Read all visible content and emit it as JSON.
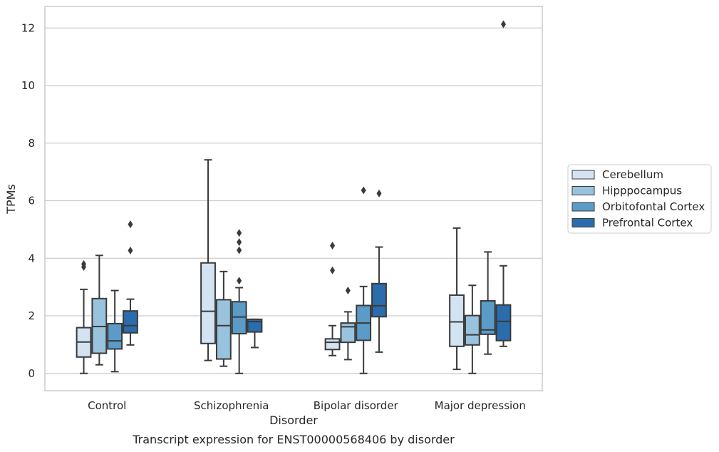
{
  "chart_data": {
    "type": "box",
    "title": "",
    "caption": "Transcript expression for ENST00000568406 by disorder",
    "xlabel": "Disorder",
    "ylabel": "TPMs",
    "ylim": [
      -0.6,
      12.75
    ],
    "yticks": [
      0,
      2,
      4,
      6,
      8,
      10,
      12
    ],
    "grid": "horizontal",
    "legend_position": "right",
    "categories": [
      "Control",
      "Schizophrenia",
      "Bipolar disorder",
      "Major depression"
    ],
    "series": [
      {
        "name": "Cerebellum",
        "color": "#d3e3f2",
        "boxes": [
          {
            "whislo": 0.0,
            "q1": 0.57,
            "med": 1.09,
            "q3": 1.59,
            "whishi": 2.92,
            "fliers": [
              3.7,
              3.8
            ]
          },
          {
            "whislo": 0.45,
            "q1": 1.04,
            "med": 2.16,
            "q3": 3.84,
            "whishi": 7.42,
            "fliers": []
          },
          {
            "whislo": 0.62,
            "q1": 0.83,
            "med": 1.08,
            "q3": 1.2,
            "whishi": 1.66,
            "fliers": [
              3.58,
              4.44
            ]
          },
          {
            "whislo": 0.14,
            "q1": 0.94,
            "med": 1.79,
            "q3": 2.72,
            "whishi": 5.05,
            "fliers": []
          }
        ]
      },
      {
        "name": "Hipppocampus",
        "color": "#99c2de",
        "boxes": [
          {
            "whislo": 0.3,
            "q1": 0.7,
            "med": 1.63,
            "q3": 2.6,
            "whishi": 4.1,
            "fliers": []
          },
          {
            "whislo": 0.25,
            "q1": 0.5,
            "med": 1.66,
            "q3": 2.56,
            "whishi": 3.54,
            "fliers": []
          },
          {
            "whislo": 0.48,
            "q1": 1.08,
            "med": 1.62,
            "q3": 1.75,
            "whishi": 2.14,
            "fliers": [
              2.88
            ]
          },
          {
            "whislo": 0.0,
            "q1": 0.99,
            "med": 1.34,
            "q3": 2.01,
            "whishi": 3.06,
            "fliers": []
          }
        ]
      },
      {
        "name": "Orbitofontal Cortex",
        "color": "#5a9bc8",
        "boxes": [
          {
            "whislo": 0.06,
            "q1": 0.85,
            "med": 1.13,
            "q3": 1.73,
            "whishi": 2.88,
            "fliers": []
          },
          {
            "whislo": 0.0,
            "q1": 1.38,
            "med": 1.96,
            "q3": 2.49,
            "whishi": 2.98,
            "fliers": [
              3.22,
              4.28,
              4.56,
              4.88
            ]
          },
          {
            "whislo": 0.0,
            "q1": 1.15,
            "med": 1.75,
            "q3": 2.36,
            "whishi": 3.02,
            "fliers": [
              6.36
            ]
          },
          {
            "whislo": 0.67,
            "q1": 1.36,
            "med": 1.51,
            "q3": 2.52,
            "whishi": 4.22,
            "fliers": []
          }
        ]
      },
      {
        "name": "Prefrontal Cortex",
        "color": "#2a6cac",
        "boxes": [
          {
            "whislo": 0.99,
            "q1": 1.41,
            "med": 1.66,
            "q3": 2.17,
            "whishi": 2.58,
            "fliers": [
              4.27,
              5.18
            ]
          },
          {
            "whislo": 0.9,
            "q1": 1.44,
            "med": 1.8,
            "q3": 1.88,
            "whishi": 1.88,
            "fliers": []
          },
          {
            "whislo": 0.74,
            "q1": 1.97,
            "med": 2.35,
            "q3": 3.12,
            "whishi": 4.39,
            "fliers": [
              6.25
            ]
          },
          {
            "whislo": 0.94,
            "q1": 1.14,
            "med": 1.81,
            "q3": 2.38,
            "whishi": 3.74,
            "fliers": [
              12.13
            ]
          }
        ]
      }
    ],
    "colors": {
      "line": "#3a3a3a",
      "grid": "#cccccc",
      "frame": "#cccccc"
    }
  }
}
